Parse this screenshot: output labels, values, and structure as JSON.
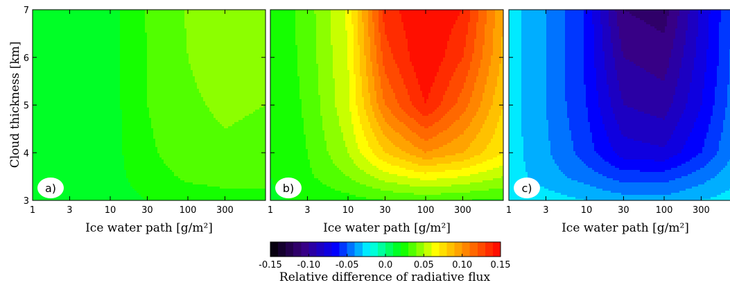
{
  "chart_data": {
    "type": "heatmap",
    "x_axis": {
      "label": "Ice water path [g/m²]",
      "scale": "log",
      "range": [
        1,
        1000
      ],
      "tick_values": [
        1,
        3,
        10,
        30,
        100,
        300
      ],
      "tick_labels": [
        "1",
        "3",
        "10",
        "30",
        "100",
        "300"
      ]
    },
    "y_axis": {
      "label": "Cloud thickness [km]",
      "range": [
        3,
        7
      ],
      "ticks": [
        3,
        4,
        5,
        6,
        7
      ]
    },
    "colorbar": {
      "label": "Relative difference of radiative flux",
      "range": [
        -0.15,
        0.15
      ],
      "ticks": [
        -0.15,
        -0.1,
        -0.05,
        0.0,
        0.05,
        0.1,
        0.15
      ],
      "tick_labels": [
        "-0.15",
        "-0.10",
        "-0.05",
        "0.0",
        "0.05",
        "0.10",
        "0.15"
      ],
      "colormap": [
        "#000000",
        "#3a0080",
        "#0000ff",
        "#00ffff",
        "#00ff00",
        "#ffff00",
        "#ff7f00",
        "#ff0000"
      ],
      "levels": 30
    },
    "grid_x": [
      1,
      3,
      10,
      30,
      100,
      300,
      1000
    ],
    "grid_y": [
      3,
      3.5,
      4,
      5,
      6,
      7
    ],
    "panels": [
      {
        "label": "a)",
        "values": [
          [
            0.015,
            0.015,
            0.016,
            0.02,
            0.024,
            0.026,
            0.026
          ],
          [
            0.015,
            0.015,
            0.016,
            0.025,
            0.032,
            0.034,
            0.034
          ],
          [
            0.015,
            0.015,
            0.016,
            0.028,
            0.036,
            0.038,
            0.036
          ],
          [
            0.015,
            0.015,
            0.016,
            0.03,
            0.038,
            0.042,
            0.04
          ],
          [
            0.015,
            0.015,
            0.016,
            0.03,
            0.04,
            0.046,
            0.044
          ],
          [
            0.015,
            0.015,
            0.016,
            0.031,
            0.041,
            0.05,
            0.046
          ]
        ]
      },
      {
        "label": "b)",
        "values": [
          [
            0.018,
            0.022,
            0.026,
            0.03,
            0.032,
            0.03,
            0.028
          ],
          [
            0.02,
            0.028,
            0.04,
            0.055,
            0.065,
            0.06,
            0.05
          ],
          [
            0.02,
            0.03,
            0.05,
            0.08,
            0.1,
            0.09,
            0.07
          ],
          [
            0.02,
            0.032,
            0.058,
            0.11,
            0.14,
            0.115,
            0.08
          ],
          [
            0.02,
            0.034,
            0.06,
            0.125,
            0.15,
            0.13,
            0.088
          ],
          [
            0.02,
            0.035,
            0.062,
            0.135,
            0.15,
            0.14,
            0.09
          ]
        ]
      },
      {
        "label": "c)",
        "values": [
          [
            -0.022,
            -0.025,
            -0.03,
            -0.035,
            -0.036,
            -0.03,
            -0.024
          ],
          [
            -0.025,
            -0.035,
            -0.045,
            -0.055,
            -0.055,
            -0.045,
            -0.03
          ],
          [
            -0.025,
            -0.038,
            -0.055,
            -0.075,
            -0.078,
            -0.06,
            -0.035
          ],
          [
            -0.025,
            -0.04,
            -0.06,
            -0.09,
            -0.095,
            -0.07,
            -0.038
          ],
          [
            -0.025,
            -0.04,
            -0.062,
            -0.1,
            -0.105,
            -0.075,
            -0.04
          ],
          [
            -0.025,
            -0.04,
            -0.062,
            -0.11,
            -0.115,
            -0.078,
            -0.04
          ]
        ]
      }
    ]
  }
}
